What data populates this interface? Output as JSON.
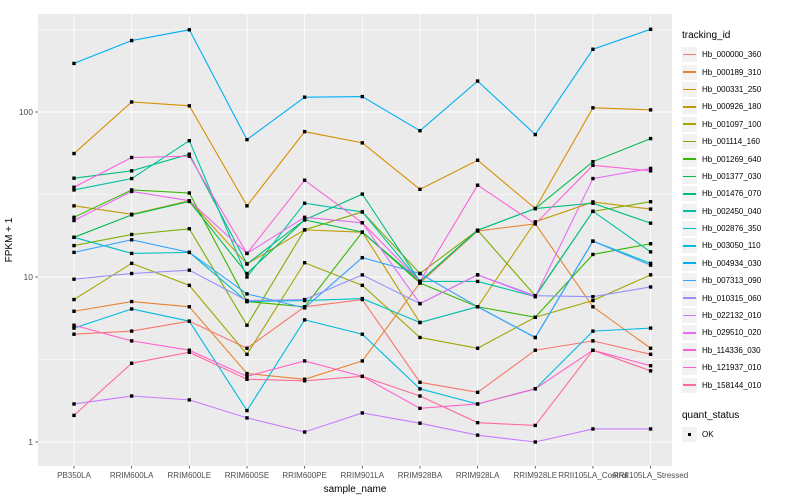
{
  "chart_data": {
    "type": "line",
    "title": "",
    "xlabel": "sample_name",
    "ylabel": "FPKM + 1",
    "y_scale": "log10",
    "ylim": [
      1,
      350
    ],
    "y_ticks": [
      1,
      10,
      100
    ],
    "y_tick_labels": [
      "1",
      "10",
      "100"
    ],
    "y_minor_ticks": [
      3.1623,
      31.623,
      316.23
    ],
    "grid": true,
    "panel_bg": "#EBEBEB",
    "grid_color": "#FFFFFF",
    "point_shape": "square",
    "point_color": "#000000",
    "legend_position": "right",
    "categories": [
      "PB350LA",
      "RRIM600LA",
      "RRIM600LE",
      "RRIM600SE",
      "RRIM600PE",
      "RRIM901LA",
      "RRIM928BA",
      "RRIM928LA",
      "RRIM928LE",
      "RRII105LA_Control",
      "RRII105LA_Stressed"
    ],
    "series": [
      {
        "name": "Hb_000000_360",
        "color": "#F8766D",
        "values": [
          4.5,
          4.7,
          5.4,
          3.7,
          6.6,
          7.3,
          2.3,
          2.0,
          3.6,
          4.1,
          3.4
        ]
      },
      {
        "name": "Hb_000189_310",
        "color": "#EA8331",
        "values": [
          6.2,
          7.1,
          6.6,
          2.6,
          2.4,
          3.1,
          9.2,
          19.0,
          21.0,
          6.6,
          3.7
        ]
      },
      {
        "name": "Hb_000331_250",
        "color": "#D89000",
        "values": [
          56,
          115,
          109,
          27,
          76,
          65,
          34,
          51,
          26,
          106,
          103
        ]
      },
      {
        "name": "Hb_000926_180",
        "color": "#C09B00",
        "values": [
          27,
          24,
          29,
          12,
          19.3,
          18.7,
          5.3,
          6.6,
          21.6,
          28.5,
          25.8
        ]
      },
      {
        "name": "Hb_001097_100",
        "color": "#A3A500",
        "values": [
          7.3,
          12.1,
          8.9,
          3.4,
          12.2,
          8.9,
          4.3,
          3.7,
          5.7,
          7.2,
          10.3
        ]
      },
      {
        "name": "Hb_001114_160",
        "color": "#7CAE00",
        "values": [
          15.5,
          18.1,
          19.6,
          5.1,
          19.3,
          24.8,
          10.5,
          19.2,
          7.7,
          25,
          28.6
        ]
      },
      {
        "name": "Hb_001269_640",
        "color": "#39B600",
        "values": [
          23,
          33.7,
          32.3,
          7.1,
          6.6,
          18.7,
          9.2,
          6.6,
          5.7,
          13.7,
          15.9
        ]
      },
      {
        "name": "Hb_001377_030",
        "color": "#00BB4E",
        "values": [
          17.4,
          23.8,
          28.7,
          10.5,
          22.2,
          18.7,
          9.4,
          19.2,
          26,
          50,
          69
        ]
      },
      {
        "name": "Hb_001476_070",
        "color": "#00BF7D",
        "values": [
          39.7,
          44,
          55.5,
          12,
          22.2,
          31.8,
          9.4,
          19.2,
          26,
          28,
          21.2
        ]
      },
      {
        "name": "Hb_002450_040",
        "color": "#00C1A3",
        "values": [
          33.7,
          39.5,
          67,
          10,
          28,
          24.8,
          9.4,
          9.4,
          7.6,
          25,
          14.2
        ]
      },
      {
        "name": "Hb_002876_350",
        "color": "#00BFC4",
        "values": [
          17.4,
          13.9,
          14.1,
          7.1,
          7.2,
          7.4,
          5.3,
          6.6,
          4.3,
          16.5,
          12.1
        ]
      },
      {
        "name": "Hb_003050_110",
        "color": "#00BAE0",
        "values": [
          4.9,
          6.4,
          5.4,
          1.55,
          5.5,
          4.5,
          2.1,
          1.7,
          2.1,
          4.7,
          4.9
        ]
      },
      {
        "name": "Hb_004934_030",
        "color": "#00B0F6",
        "values": [
          197,
          271,
          315,
          68,
          123,
          124,
          77,
          154,
          73,
          240,
          317
        ]
      },
      {
        "name": "Hb_007313_090",
        "color": "#35A2FF",
        "values": [
          14.1,
          16.8,
          14.1,
          7.9,
          6.5,
          13.1,
          10.5,
          6.6,
          4.3,
          16.5,
          11.8
        ]
      },
      {
        "name": "Hb_010315_060",
        "color": "#9590FF",
        "values": [
          9.7,
          10.5,
          11,
          7.2,
          7.3,
          10.3,
          6.9,
          10.3,
          7.7,
          7.6,
          8.7
        ]
      },
      {
        "name": "Hb_022132_010",
        "color": "#C77CFF",
        "values": [
          1.7,
          1.9,
          1.8,
          1.4,
          1.15,
          1.5,
          1.3,
          1.1,
          1.0,
          1.2,
          1.2
        ]
      },
      {
        "name": "Hb_029510_020",
        "color": "#E76BF3",
        "values": [
          22,
          33,
          29,
          13.9,
          23,
          21.3,
          6.9,
          10.3,
          7.6,
          39.5,
          45.5
        ]
      },
      {
        "name": "Hb_114336_030",
        "color": "#FA62DB",
        "values": [
          35,
          53,
          54,
          13.9,
          38.6,
          21.3,
          9.4,
          36,
          21,
          47.5,
          44
        ]
      },
      {
        "name": "Hb_121937_010",
        "color": "#FF61CC",
        "values": [
          5.1,
          4.1,
          3.6,
          2.5,
          3.1,
          2.5,
          1.6,
          1.7,
          2.1,
          3.6,
          2.9
        ]
      },
      {
        "name": "Hb_158144_010",
        "color": "#FF6A98",
        "values": [
          1.45,
          3.0,
          3.5,
          2.4,
          2.35,
          2.5,
          1.9,
          1.31,
          1.26,
          3.6,
          2.7
        ]
      }
    ],
    "legend": {
      "color_legend_title": "tracking_id",
      "shape_legend_title": "quant_status",
      "shape_items": [
        {
          "label": "OK",
          "shape": "square",
          "color": "#000000"
        }
      ]
    }
  }
}
